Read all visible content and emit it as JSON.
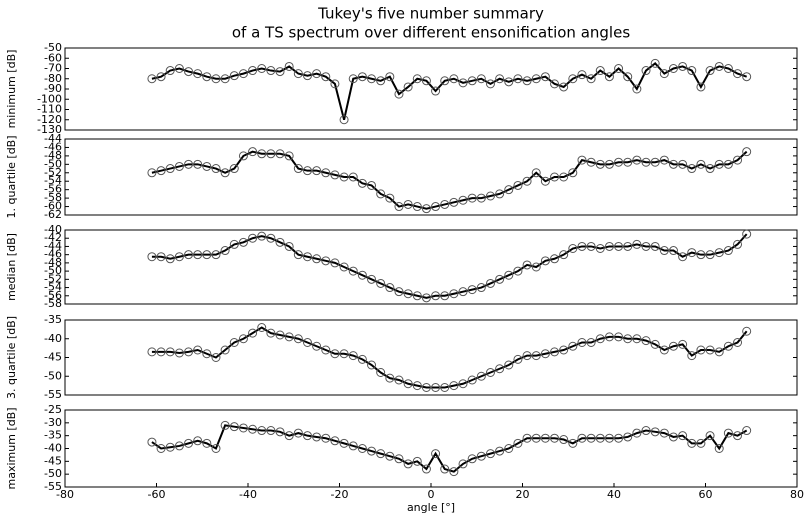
{
  "title": [
    "Tukey's five number summary",
    "of a TS spectrum over different ensonification angles"
  ],
  "chart_data": [
    {
      "type": "line",
      "ylabel": "minimum [dB]",
      "color": "#000000",
      "marker_color": "#555555",
      "xlim": [
        -80,
        80
      ],
      "ylim": [
        -130,
        -50
      ],
      "yticks": [
        -130,
        -120,
        -110,
        -100,
        -90,
        -80,
        -70,
        -60,
        -50
      ],
      "x": [
        -61,
        -59,
        -57,
        -55,
        -53,
        -51,
        -49,
        -47,
        -45,
        -43,
        -41,
        -39,
        -37,
        -35,
        -33,
        -31,
        -29,
        -27,
        -25,
        -23,
        -21,
        -19,
        -17,
        -15,
        -13,
        -11,
        -9,
        -7,
        -5,
        -3,
        -1,
        1,
        3,
        5,
        7,
        9,
        11,
        13,
        15,
        17,
        19,
        21,
        23,
        25,
        27,
        29,
        31,
        33,
        35,
        37,
        39,
        41,
        43,
        45,
        47,
        49,
        51,
        53,
        55,
        57,
        59,
        61,
        63,
        65,
        67,
        69
      ],
      "values": [
        -80,
        -78,
        -72,
        -70,
        -73,
        -75,
        -78,
        -80,
        -80,
        -77,
        -75,
        -72,
        -70,
        -72,
        -73,
        -68,
        -75,
        -77,
        -75,
        -78,
        -85,
        -120,
        -80,
        -78,
        -80,
        -82,
        -78,
        -95,
        -88,
        -80,
        -82,
        -92,
        -82,
        -80,
        -84,
        -82,
        -80,
        -85,
        -80,
        -83,
        -80,
        -82,
        -80,
        -78,
        -85,
        -88,
        -80,
        -76,
        -80,
        -72,
        -78,
        -70,
        -78,
        -90,
        -72,
        -65,
        -75,
        -70,
        -68,
        -72,
        -88,
        -72,
        -68,
        -70,
        -75,
        -78
      ]
    },
    {
      "type": "line",
      "ylabel": "1. quartile [dB]",
      "color": "#000000",
      "marker_color": "#555555",
      "xlim": [
        -80,
        80
      ],
      "ylim": [
        -62,
        -44
      ],
      "yticks": [
        -62,
        -60,
        -58,
        -56,
        -54,
        -52,
        -50,
        -48,
        -46,
        -44
      ],
      "x": [
        -61,
        -59,
        -57,
        -55,
        -53,
        -51,
        -49,
        -47,
        -45,
        -43,
        -41,
        -39,
        -37,
        -35,
        -33,
        -31,
        -29,
        -27,
        -25,
        -23,
        -21,
        -19,
        -17,
        -15,
        -13,
        -11,
        -9,
        -7,
        -5,
        -3,
        -1,
        1,
        3,
        5,
        7,
        9,
        11,
        13,
        15,
        17,
        19,
        21,
        23,
        25,
        27,
        29,
        31,
        33,
        35,
        37,
        39,
        41,
        43,
        45,
        47,
        49,
        51,
        53,
        55,
        57,
        59,
        61,
        63,
        65,
        67,
        69
      ],
      "values": [
        -52,
        -51.5,
        -51,
        -50.5,
        -50,
        -50,
        -50.5,
        -51,
        -52,
        -51,
        -48,
        -47,
        -47.5,
        -47.5,
        -47.5,
        -48,
        -51,
        -51.5,
        -51.5,
        -52,
        -52.5,
        -53,
        -53,
        -54.5,
        -55,
        -57,
        -58,
        -60,
        -59.5,
        -60,
        -60.5,
        -60,
        -59.5,
        -59,
        -58.5,
        -58,
        -58,
        -57.5,
        -57,
        -56,
        -55,
        -54,
        -52,
        -54,
        -53,
        -53,
        -52,
        -49,
        -49.5,
        -50,
        -50,
        -49.5,
        -49.5,
        -49,
        -49.5,
        -49.5,
        -49,
        -50,
        -50,
        -51,
        -50,
        -51,
        -50,
        -50,
        -49,
        -47
      ]
    },
    {
      "type": "line",
      "ylabel": "median [dB]",
      "color": "#000000",
      "marker_color": "#555555",
      "xlim": [
        -80,
        80
      ],
      "ylim": [
        -58,
        -40
      ],
      "yticks": [
        -58,
        -56,
        -54,
        -52,
        -50,
        -48,
        -46,
        -44,
        -42,
        -40
      ],
      "x": [
        -61,
        -59,
        -57,
        -55,
        -53,
        -51,
        -49,
        -47,
        -45,
        -43,
        -41,
        -39,
        -37,
        -35,
        -33,
        -31,
        -29,
        -27,
        -25,
        -23,
        -21,
        -19,
        -17,
        -15,
        -13,
        -11,
        -9,
        -7,
        -5,
        -3,
        -1,
        1,
        3,
        5,
        7,
        9,
        11,
        13,
        15,
        17,
        19,
        21,
        23,
        25,
        27,
        29,
        31,
        33,
        35,
        37,
        39,
        41,
        43,
        45,
        47,
        49,
        51,
        53,
        55,
        57,
        59,
        61,
        63,
        65,
        67,
        69
      ],
      "values": [
        -46.5,
        -46.5,
        -47,
        -46.5,
        -46,
        -46,
        -46,
        -46,
        -45,
        -43.5,
        -43,
        -42,
        -41.5,
        -42,
        -43,
        -44,
        -46,
        -46.5,
        -47,
        -47.5,
        -48,
        -49,
        -50,
        -51,
        -52,
        -53,
        -54,
        -55,
        -55.5,
        -56,
        -56.5,
        -56,
        -56,
        -55.5,
        -55,
        -54.5,
        -54,
        -53,
        -52,
        -51,
        -50,
        -48.5,
        -49,
        -47.5,
        -47,
        -46,
        -44.5,
        -44,
        -44,
        -44.5,
        -44,
        -44,
        -44,
        -43.5,
        -44,
        -44,
        -45,
        -45,
        -46.5,
        -45.5,
        -46,
        -46,
        -45.5,
        -45,
        -43.5,
        -41
      ]
    },
    {
      "type": "line",
      "ylabel": "3. quartile [dB]",
      "color": "#000000",
      "marker_color": "#555555",
      "xlim": [
        -80,
        80
      ],
      "ylim": [
        -55,
        -35
      ],
      "yticks": [
        -55,
        -50,
        -45,
        -40,
        -35
      ],
      "x": [
        -61,
        -59,
        -57,
        -55,
        -53,
        -51,
        -49,
        -47,
        -45,
        -43,
        -41,
        -39,
        -37,
        -35,
        -33,
        -31,
        -29,
        -27,
        -25,
        -23,
        -21,
        -19,
        -17,
        -15,
        -13,
        -11,
        -9,
        -7,
        -5,
        -3,
        -1,
        1,
        3,
        5,
        7,
        9,
        11,
        13,
        15,
        17,
        19,
        21,
        23,
        25,
        27,
        29,
        31,
        33,
        35,
        37,
        39,
        41,
        43,
        45,
        47,
        49,
        51,
        53,
        55,
        57,
        59,
        61,
        63,
        65,
        67,
        69
      ],
      "values": [
        -43.5,
        -43.5,
        -43.5,
        -43.8,
        -43.5,
        -43,
        -44,
        -45,
        -43,
        -41,
        -40,
        -38.5,
        -37,
        -38.5,
        -39,
        -39.5,
        -40,
        -41,
        -42,
        -43,
        -44,
        -44,
        -44.5,
        -45.5,
        -47,
        -49,
        -50.5,
        -51,
        -52,
        -52.5,
        -53,
        -53,
        -53,
        -52.5,
        -52,
        -51,
        -50,
        -49,
        -48,
        -47,
        -45.5,
        -44.5,
        -44.5,
        -44,
        -43.5,
        -43,
        -42,
        -41,
        -41,
        -40,
        -39.5,
        -39.5,
        -40,
        -40,
        -40.5,
        -41.5,
        -43,
        -42,
        -41.5,
        -44.5,
        -43,
        -43,
        -43.5,
        -42,
        -41,
        -38
      ]
    },
    {
      "type": "line",
      "ylabel": "maximum [dB]",
      "xlabel": "angle [°]",
      "color": "#000000",
      "marker_color": "#555555",
      "xlim": [
        -80,
        80
      ],
      "xticks": [
        -80,
        -60,
        -40,
        -20,
        0,
        20,
        40,
        60,
        80
      ],
      "ylim": [
        -55,
        -25
      ],
      "yticks": [
        -55,
        -50,
        -45,
        -40,
        -35,
        -30,
        -25
      ],
      "x": [
        -61,
        -59,
        -57,
        -55,
        -53,
        -51,
        -49,
        -47,
        -45,
        -43,
        -41,
        -39,
        -37,
        -35,
        -33,
        -31,
        -29,
        -27,
        -25,
        -23,
        -21,
        -19,
        -17,
        -15,
        -13,
        -11,
        -9,
        -7,
        -5,
        -3,
        -1,
        1,
        3,
        5,
        7,
        9,
        11,
        13,
        15,
        17,
        19,
        21,
        23,
        25,
        27,
        29,
        31,
        33,
        35,
        37,
        39,
        41,
        43,
        45,
        47,
        49,
        51,
        53,
        55,
        57,
        59,
        61,
        63,
        65,
        67,
        69
      ],
      "values": [
        -37.5,
        -40,
        -39.5,
        -39,
        -38,
        -37,
        -38,
        -40,
        -31,
        -31.5,
        -32,
        -32.5,
        -33,
        -33,
        -33.5,
        -35,
        -34,
        -35,
        -35.5,
        -36,
        -37,
        -38,
        -39,
        -40,
        -41,
        -42,
        -43,
        -44,
        -46,
        -45,
        -48,
        -42,
        -48,
        -49,
        -46,
        -44,
        -43,
        -42,
        -41,
        -40,
        -38,
        -36,
        -36,
        -36,
        -36,
        -36.5,
        -38,
        -36,
        -36,
        -36,
        -36,
        -36,
        -35.5,
        -34,
        -33,
        -33.5,
        -34,
        -35.5,
        -35,
        -38,
        -38,
        -35,
        -40,
        -34,
        -35,
        -33
      ]
    }
  ]
}
